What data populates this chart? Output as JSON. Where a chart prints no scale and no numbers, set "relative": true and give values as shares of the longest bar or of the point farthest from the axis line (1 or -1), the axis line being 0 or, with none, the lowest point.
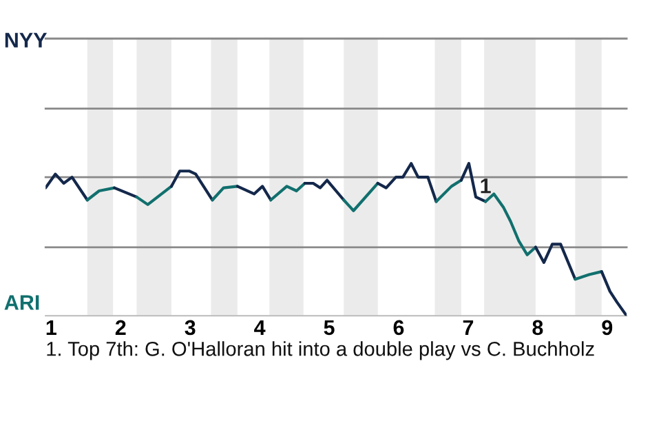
{
  "chart_data": {
    "type": "line",
    "relative": true,
    "xlim": [
      0.92,
      9.28
    ],
    "xticks": [
      1,
      2,
      3,
      4,
      5,
      6,
      7,
      8,
      9
    ],
    "marker": "none",
    "line_style": "solid",
    "ref_lines": [
      {
        "axis": "y",
        "value": 0.45,
        "color": "#888888"
      },
      {
        "axis": "y",
        "value": 0.91,
        "color": "#888888"
      },
      {
        "axis": "y",
        "value": 1.36,
        "color": "#888888"
      },
      {
        "axis": "y",
        "value": 1.82,
        "color": "#888888"
      }
    ],
    "bands": [
      {
        "axis": "x",
        "from": 1.52,
        "to": 1.89,
        "color": "#ebebeb"
      },
      {
        "axis": "x",
        "from": 2.23,
        "to": 2.73,
        "color": "#ebebeb"
      },
      {
        "axis": "x",
        "from": 3.3,
        "to": 3.68,
        "color": "#ebebeb"
      },
      {
        "axis": "x",
        "from": 4.14,
        "to": 4.63,
        "color": "#ebebeb"
      },
      {
        "axis": "x",
        "from": 5.21,
        "to": 5.7,
        "color": "#ebebeb"
      },
      {
        "axis": "x",
        "from": 6.52,
        "to": 6.9,
        "color": "#ebebeb"
      },
      {
        "axis": "x",
        "from": 7.23,
        "to": 7.97,
        "color": "#ebebeb"
      },
      {
        "axis": "x",
        "from": 8.54,
        "to": 8.92,
        "color": "#ebebeb"
      }
    ],
    "series": [
      {
        "color": "#14284b",
        "x": [
          0.92,
          1.06,
          1.18,
          1.3,
          1.52
        ],
        "values": [
          0.84,
          0.93,
          0.87,
          0.91,
          0.76
        ]
      },
      {
        "color": "#11706e",
        "x": [
          1.52,
          1.69,
          1.91
        ],
        "values": [
          0.76,
          0.82,
          0.84
        ]
      },
      {
        "color": "#14284b",
        "x": [
          1.91,
          2.23
        ],
        "values": [
          0.84,
          0.78
        ]
      },
      {
        "color": "#11706e",
        "x": [
          2.23,
          2.39,
          2.73
        ],
        "values": [
          0.78,
          0.73,
          0.85
        ]
      },
      {
        "color": "#14284b",
        "x": [
          2.73,
          2.85,
          2.99,
          3.08,
          3.32
        ],
        "values": [
          0.85,
          0.95,
          0.95,
          0.93,
          0.76
        ]
      },
      {
        "color": "#11706e",
        "x": [
          3.32,
          3.48,
          3.68
        ],
        "values": [
          0.76,
          0.84,
          0.85
        ]
      },
      {
        "color": "#14284b",
        "x": [
          3.68,
          3.92,
          4.04,
          4.16
        ],
        "values": [
          0.85,
          0.8,
          0.85,
          0.76
        ]
      },
      {
        "color": "#11706e",
        "x": [
          4.16,
          4.39,
          4.53,
          4.65
        ],
        "values": [
          0.76,
          0.85,
          0.82,
          0.87
        ]
      },
      {
        "color": "#14284b",
        "x": [
          4.65,
          4.77,
          4.87,
          4.97,
          5.21
        ],
        "values": [
          0.87,
          0.87,
          0.84,
          0.89,
          0.76
        ]
      },
      {
        "color": "#11706e",
        "x": [
          5.21,
          5.35,
          5.7
        ],
        "values": [
          0.76,
          0.69,
          0.87
        ]
      },
      {
        "color": "#14284b",
        "x": [
          5.7,
          5.82,
          5.96,
          6.06,
          6.18,
          6.28,
          6.42,
          6.54
        ],
        "values": [
          0.87,
          0.84,
          0.91,
          0.91,
          1,
          0.91,
          0.91,
          0.75
        ]
      },
      {
        "color": "#11706e",
        "x": [
          6.54,
          6.76,
          6.9
        ],
        "values": [
          0.75,
          0.85,
          0.89
        ]
      },
      {
        "color": "#14284b",
        "x": [
          6.9,
          7.01,
          7.11,
          7.25
        ],
        "values": [
          0.89,
          1,
          0.78,
          0.75
        ]
      },
      {
        "color": "#11706e",
        "x": [
          7.25,
          7.37,
          7.51,
          7.61,
          7.73,
          7.85,
          7.97
        ],
        "values": [
          0.75,
          0.8,
          0.71,
          0.62,
          0.49,
          0.4,
          0.45
        ]
      },
      {
        "color": "#14284b",
        "x": [
          7.97,
          8.09,
          8.21,
          8.33,
          8.54
        ],
        "values": [
          0.45,
          0.35,
          0.47,
          0.47,
          0.24
        ]
      },
      {
        "color": "#11706e",
        "x": [
          8.54,
          8.74,
          8.92
        ],
        "values": [
          0.24,
          0.27,
          0.29
        ]
      },
      {
        "color": "#14284b",
        "x": [
          8.92,
          9.04,
          9.14,
          9.28
        ],
        "values": [
          0.29,
          0.16,
          0.09,
          0
        ]
      }
    ],
    "annotations": [
      {
        "text": "1",
        "x": 7.11,
        "y": 0.78
      },
      "NYY",
      "ARI",
      "1. Top 7th: G. O'Halloran hit into a double play vs C. Buchholz"
    ]
  }
}
